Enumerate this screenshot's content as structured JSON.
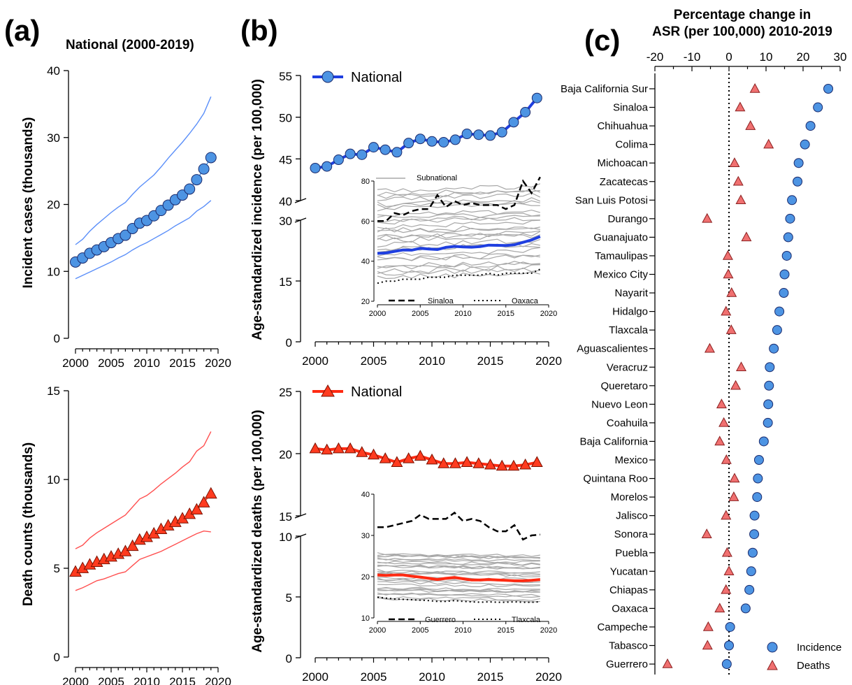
{
  "panel_labels": [
    "(a)",
    "(b)",
    "(c)"
  ],
  "chart_data": [
    {
      "id": "a_incidence",
      "type": "line",
      "title": "National (2000-2019)",
      "xlabel": "",
      "ylabel": "Incident cases (thousands)",
      "xlim": [
        2000,
        2020
      ],
      "ylim": [
        0,
        40
      ],
      "xticks": [
        2000,
        2005,
        2010,
        2015,
        2020
      ],
      "yticks": [
        0,
        10,
        20,
        30,
        40
      ],
      "x": [
        2000,
        2001,
        2002,
        2003,
        2004,
        2005,
        2006,
        2007,
        2008,
        2009,
        2010,
        2011,
        2012,
        2013,
        2014,
        2015,
        2016,
        2017,
        2018,
        2019
      ],
      "series": [
        {
          "role": "estimate",
          "marker": "circle",
          "color": "#4d94e3",
          "values": [
            11.4,
            12.0,
            12.7,
            13.2,
            13.7,
            14.3,
            14.9,
            15.4,
            16.4,
            17.2,
            17.6,
            18.3,
            19.1,
            19.9,
            20.7,
            21.4,
            22.3,
            23.7,
            25.3,
            27.0
          ]
        },
        {
          "role": "upper",
          "color": "#5b8ff9",
          "values": [
            14.0,
            14.8,
            16.0,
            17.0,
            17.9,
            18.8,
            19.6,
            20.3,
            21.5,
            22.6,
            23.5,
            24.4,
            25.6,
            26.9,
            28.1,
            29.3,
            30.6,
            32.0,
            33.6,
            36.1
          ]
        },
        {
          "role": "lower",
          "color": "#5b8ff9",
          "values": [
            8.9,
            9.4,
            9.9,
            10.4,
            10.9,
            11.4,
            12.0,
            12.5,
            13.2,
            13.8,
            14.3,
            14.9,
            15.5,
            16.1,
            16.8,
            17.4,
            18.0,
            19.0,
            19.7,
            20.6
          ]
        }
      ]
    },
    {
      "id": "a_deaths",
      "type": "line",
      "title": "",
      "xlabel": "",
      "ylabel": "Death counts (thousands)",
      "xlim": [
        2000,
        2020
      ],
      "ylim": [
        0,
        15
      ],
      "xticks": [
        2000,
        2005,
        2010,
        2015,
        2020
      ],
      "yticks": [
        0,
        5,
        10,
        15
      ],
      "x": [
        2000,
        2001,
        2002,
        2003,
        2004,
        2005,
        2006,
        2007,
        2008,
        2009,
        2010,
        2011,
        2012,
        2013,
        2014,
        2015,
        2016,
        2017,
        2018,
        2019
      ],
      "series": [
        {
          "role": "estimate",
          "marker": "triangle",
          "color": "#ff3b1f",
          "values": [
            4.8,
            5.0,
            5.2,
            5.35,
            5.5,
            5.65,
            5.8,
            5.95,
            6.25,
            6.6,
            6.75,
            6.95,
            7.2,
            7.4,
            7.6,
            7.8,
            8.05,
            8.3,
            8.7,
            9.2
          ]
        },
        {
          "role": "upper",
          "color": "#ff5050",
          "values": [
            6.1,
            6.3,
            6.7,
            7.0,
            7.25,
            7.5,
            7.75,
            8.0,
            8.45,
            8.9,
            9.1,
            9.4,
            9.75,
            10.05,
            10.35,
            10.7,
            11.0,
            11.6,
            11.9,
            12.7
          ]
        },
        {
          "role": "lower",
          "color": "#ff5050",
          "values": [
            3.75,
            3.9,
            4.1,
            4.3,
            4.4,
            4.55,
            4.7,
            4.8,
            5.15,
            5.5,
            5.65,
            5.8,
            5.95,
            6.15,
            6.35,
            6.55,
            6.75,
            6.95,
            7.1,
            7.05
          ]
        }
      ]
    },
    {
      "id": "b_incidence",
      "type": "line",
      "xlabel": "",
      "ylabel": "Age-standardized incidence (per 100,000)",
      "ylim_upper": [
        40,
        55
      ],
      "ylim_lower": [
        0,
        30
      ],
      "yticks": [
        0,
        15,
        30,
        40,
        45,
        50,
        55
      ],
      "xticks": [
        2000,
        2005,
        2010,
        2015,
        2020
      ],
      "x": [
        2000,
        2001,
        2002,
        2003,
        2004,
        2005,
        2006,
        2007,
        2008,
        2009,
        2010,
        2011,
        2012,
        2013,
        2014,
        2015,
        2016,
        2017,
        2018,
        2019
      ],
      "legend": "National",
      "series": [
        {
          "name": "National",
          "color": "#1f3fe0",
          "marker": "circle",
          "values": [
            43.9,
            44.1,
            44.9,
            45.6,
            45.5,
            46.4,
            46.1,
            45.8,
            46.9,
            47.4,
            47.1,
            47.0,
            47.3,
            48.0,
            47.9,
            47.8,
            48.2,
            49.4,
            50.6,
            52.3
          ]
        }
      ],
      "inset": {
        "xlim": [
          2000,
          2020
        ],
        "ylim": [
          20,
          80
        ],
        "xticks": [
          2000,
          2005,
          2010,
          2015,
          2020
        ],
        "yticks": [
          20,
          40,
          60,
          80
        ],
        "legend_top": "Subnational",
        "legend_bottom": [
          "Sinaloa",
          "Oaxaca"
        ],
        "national": [
          43.9,
          44.1,
          44.9,
          45.6,
          45.5,
          46.4,
          46.1,
          45.8,
          46.9,
          47.4,
          47.1,
          47.0,
          47.3,
          48.0,
          47.9,
          47.8,
          48.2,
          49.4,
          50.6,
          52.3
        ],
        "sinaloa": [
          60,
          60,
          64,
          63,
          65,
          66,
          66,
          73,
          67,
          70,
          68,
          69,
          68,
          68,
          68,
          66,
          68,
          80,
          74,
          82
        ],
        "oaxaca": [
          29,
          30,
          30,
          31,
          31,
          31,
          32,
          32,
          32,
          33,
          33,
          33,
          33,
          34,
          33,
          34,
          34,
          34,
          34,
          36
        ],
        "subnational_band": [
          32,
          75
        ]
      }
    },
    {
      "id": "b_deaths",
      "type": "line",
      "xlabel": "",
      "ylabel": "Age-standardized deaths (per 100,000)",
      "ylim_upper": [
        15,
        25
      ],
      "ylim_lower": [
        0,
        10
      ],
      "yticks": [
        0,
        5,
        10,
        15,
        20,
        25
      ],
      "xticks": [
        2000,
        2005,
        2010,
        2015,
        2020
      ],
      "x": [
        2000,
        2001,
        2002,
        2003,
        2004,
        2005,
        2006,
        2007,
        2008,
        2009,
        2010,
        2011,
        2012,
        2013,
        2014,
        2015,
        2016,
        2017,
        2018,
        2019
      ],
      "legend": "National",
      "series": [
        {
          "name": "National",
          "color": "#ff2a12",
          "marker": "triangle",
          "values": [
            20.4,
            20.3,
            20.4,
            20.4,
            20.1,
            19.9,
            19.6,
            19.3,
            19.6,
            19.8,
            19.5,
            19.2,
            19.2,
            19.3,
            19.2,
            19.1,
            19.0,
            19.0,
            19.1,
            19.3
          ]
        }
      ],
      "inset": {
        "xlim": [
          2000,
          2020
        ],
        "ylim": [
          10,
          40
        ],
        "xticks": [
          2000,
          2005,
          2010,
          2015,
          2020
        ],
        "yticks": [
          10,
          20,
          30,
          40
        ],
        "legend_bottom": [
          "Guerrero",
          "Tlaxcala"
        ],
        "national": [
          20.4,
          20.3,
          20.4,
          20.4,
          20.1,
          19.9,
          19.6,
          19.3,
          19.6,
          19.8,
          19.5,
          19.2,
          19.2,
          19.3,
          19.2,
          19.1,
          19.0,
          19.0,
          19.1,
          19.3
        ],
        "guerrero": [
          32,
          32,
          32.5,
          33,
          33.5,
          35,
          34,
          34,
          34,
          35.5,
          33.5,
          34,
          33.5,
          32,
          31,
          31,
          32.5,
          29,
          30,
          30.2
        ],
        "tlaxcala": [
          15,
          14.8,
          14.6,
          14.5,
          14.4,
          14.3,
          14.2,
          14.0,
          14.0,
          14.2,
          14.0,
          13.9,
          13.8,
          13.9,
          13.8,
          13.8,
          13.9,
          13.8,
          13.8,
          13.9
        ],
        "subnational_band": [
          15,
          26
        ]
      }
    },
    {
      "id": "c_percent_change",
      "type": "scatter",
      "title": "Percentage change in ASR (per 100,000) 2010-2019",
      "title_lines": [
        "Percentage change in",
        "ASR (per 100,000) 2010-2019"
      ],
      "xlim": [
        -20,
        30
      ],
      "xticks": [
        -20,
        -10,
        0,
        10,
        20,
        30
      ],
      "legend": [
        "Incidence",
        "Deaths"
      ],
      "categories": [
        "Baja California Sur",
        "Sinaloa",
        "Chihuahua",
        "Colima",
        "Michoacan",
        "Zacatecas",
        "San Luis Potosi",
        "Durango",
        "Guanajuato",
        "Tamaulipas",
        "Mexico City",
        "Nayarit",
        "Hidalgo",
        "Tlaxcala",
        "Aguascalientes",
        "Veracruz",
        "Queretaro",
        "Nuevo Leon",
        "Coahuila",
        "Baja California",
        "Mexico",
        "Quintana Roo",
        "Morelos",
        "Jalisco",
        "Sonora",
        "Puebla",
        "Yucatan",
        "Chiapas",
        "Oaxaca",
        "Campeche",
        "Tabasco",
        "Guerrero"
      ],
      "series": [
        {
          "name": "Incidence",
          "marker": "circle",
          "color": "#4d94e3",
          "values": [
            26.8,
            24.0,
            22.0,
            20.5,
            18.8,
            18.5,
            17.0,
            16.5,
            16.0,
            15.6,
            15.0,
            14.8,
            13.6,
            13.0,
            12.1,
            11.0,
            10.8,
            10.6,
            10.5,
            9.4,
            8.1,
            7.8,
            7.6,
            6.9,
            6.8,
            6.4,
            6.0,
            5.5,
            4.5,
            0.3,
            0.0,
            -0.6
          ]
        },
        {
          "name": "Deaths",
          "marker": "triangle",
          "color": "#f07070",
          "values": [
            7.0,
            3.0,
            5.8,
            10.7,
            1.5,
            2.5,
            3.2,
            -5.9,
            4.7,
            -0.3,
            -0.2,
            0.7,
            -0.8,
            0.6,
            -5.2,
            3.3,
            1.8,
            -2.0,
            -1.4,
            -2.5,
            -0.7,
            1.5,
            1.3,
            -0.8,
            -6.0,
            -0.5,
            0.0,
            -0.8,
            -2.5,
            -5.6,
            -5.8,
            -16.6
          ]
        }
      ]
    }
  ]
}
